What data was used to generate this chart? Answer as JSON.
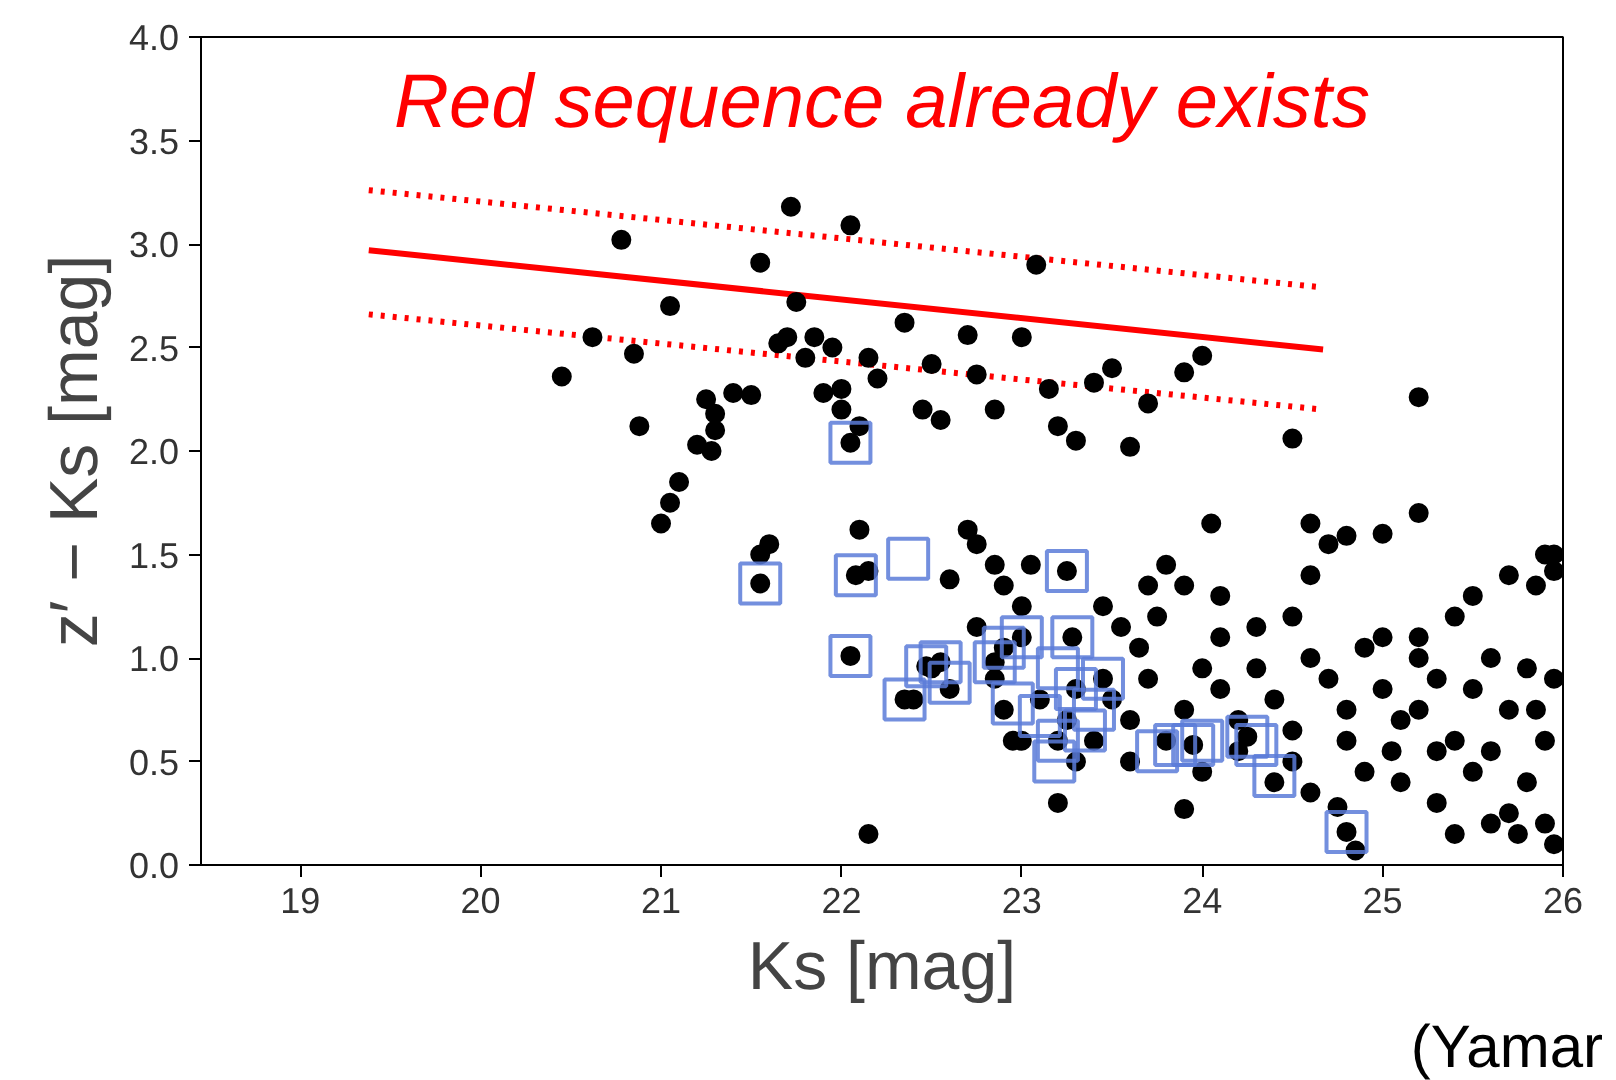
{
  "chart_data": {
    "type": "scatter",
    "title": "Red sequence already exists",
    "xlabel": "Ks [mag]",
    "ylabel": "z′ − Ks [mag]",
    "annotations": [
      "(Yamar"
    ],
    "xlim": [
      18.45,
      26
    ],
    "ylim": [
      0,
      4
    ],
    "xticks": [
      19,
      20,
      21,
      22,
      23,
      24,
      25,
      26
    ],
    "yticks": [
      {
        "value": 0,
        "label": "0.0"
      },
      {
        "value": 0.5,
        "label": "0.5"
      },
      {
        "value": 1,
        "label": "1.0"
      },
      {
        "value": 1.5,
        "label": "1.5"
      },
      {
        "value": 2,
        "label": "2.0"
      },
      {
        "value": 2.5,
        "label": "2.5"
      },
      {
        "value": 3,
        "label": "3.0"
      },
      {
        "value": 3.5,
        "label": "3.5"
      },
      {
        "value": 4,
        "label": "4.0"
      }
    ],
    "grid": false,
    "series": [
      {
        "marker": "circle",
        "color": "#000000",
        "x": [
          20.45,
          20.62,
          20.78,
          20.85,
          20.88,
          21.05,
          21.0,
          21.05,
          21.1,
          21.2,
          21.25,
          21.3,
          21.3,
          21.28,
          21.4,
          21.5,
          21.55,
          21.6,
          21.65,
          21.7,
          21.72,
          21.75,
          21.8,
          21.85,
          21.9,
          21.95,
          22.0,
          22.05,
          22.15,
          22.2,
          22.0,
          22.1,
          22.35,
          22.45,
          22.5,
          22.55,
          22.7,
          22.75,
          22.85,
          23.0,
          23.08,
          23.15,
          23.2,
          23.3,
          23.4,
          23.5,
          23.7,
          23.9,
          24.0,
          23.6,
          24.5,
          25.2,
          25.2,
          24.05,
          24.6,
          24.8,
          25.0,
          25.9,
          25.95,
          21.55,
          22.1,
          22.15,
          22.6,
          22.7,
          22.75,
          22.85,
          22.9,
          22.75,
          23.0,
          23.05,
          23.45,
          23.55,
          23.65,
          23.7,
          23.8,
          23.9,
          24.1,
          24.3,
          24.5,
          24.6,
          24.7,
          25.0,
          25.2,
          25.4,
          25.5,
          25.7,
          25.85,
          25.95,
          23.5,
          23.6,
          23.7,
          23.8,
          23.9,
          24.0,
          24.1,
          24.2,
          24.3,
          24.4,
          24.5,
          24.6,
          24.7,
          24.8,
          24.9,
          25.0,
          25.1,
          25.2,
          25.3,
          25.4,
          25.5,
          25.6,
          25.7,
          25.8,
          25.9,
          25.95,
          24.4,
          24.6,
          24.75,
          24.9,
          25.1,
          25.3,
          25.5,
          25.7,
          25.8,
          25.9,
          25.95,
          24.85,
          24.2,
          24.0,
          23.9,
          23.6,
          23.3,
          22.85,
          22.9,
          23.1,
          23.0,
          23.2,
          22.15,
          23.4,
          25.6,
          25.3,
          25.05,
          24.8,
          24.1,
          23.75,
          25.4,
          25.6,
          25.75,
          22.6,
          22.4,
          22.5,
          22.95,
          23.25,
          24.5,
          25.2,
          25.85,
          21.55,
          22.05,
          22.08,
          22.05,
          22.35,
          22.47,
          22.55,
          22.85,
          22.9,
          23.0,
          23.2,
          23.25,
          23.28,
          23.3,
          23.45,
          23.95,
          24.25,
          24.8
        ],
        "values": [
          2.36,
          2.55,
          3.02,
          2.47,
          2.12,
          2.7,
          1.65,
          1.75,
          1.85,
          2.03,
          2.25,
          2.18,
          2.1,
          2.0,
          2.28,
          2.27,
          2.91,
          1.55,
          2.52,
          2.55,
          3.18,
          2.72,
          2.45,
          2.55,
          2.28,
          2.5,
          2.3,
          3.09,
          2.45,
          2.35,
          2.2,
          2.12,
          2.62,
          2.2,
          2.42,
          2.15,
          2.56,
          2.37,
          2.2,
          2.55,
          2.9,
          2.3,
          2.12,
          2.05,
          2.33,
          2.4,
          2.23,
          2.38,
          2.46,
          2.02,
          2.06,
          2.26,
          1.7,
          1.65,
          1.65,
          1.59,
          1.6,
          1.5,
          1.42,
          1.5,
          1.62,
          1.42,
          1.38,
          1.62,
          1.55,
          1.45,
          1.35,
          1.15,
          1.25,
          1.45,
          1.25,
          1.15,
          1.05,
          1.35,
          1.45,
          1.35,
          1.3,
          1.15,
          1.2,
          1.4,
          1.55,
          1.1,
          1.0,
          1.2,
          1.3,
          1.4,
          1.35,
          1.5,
          0.8,
          0.7,
          0.9,
          0.6,
          0.75,
          0.95,
          0.85,
          0.7,
          0.95,
          0.8,
          0.65,
          1.0,
          0.9,
          0.75,
          1.05,
          0.85,
          0.7,
          1.1,
          0.9,
          0.6,
          0.85,
          1.0,
          0.75,
          0.95,
          0.6,
          0.9,
          0.4,
          0.35,
          0.28,
          0.45,
          0.4,
          0.3,
          0.45,
          0.25,
          0.4,
          0.2,
          0.1,
          0.07,
          0.55,
          0.45,
          0.27,
          0.5,
          0.5,
          0.9,
          0.75,
          0.8,
          0.6,
          0.3,
          0.15,
          0.6,
          0.55,
          0.55,
          0.55,
          0.6,
          1.1,
          1.2,
          0.15,
          0.2,
          0.15,
          0.85,
          0.8,
          0.95,
          0.6,
          0.7,
          0.5,
          0.75,
          0.75,
          1.36,
          2.04,
          1.4,
          1.01,
          0.8,
          0.96,
          0.98,
          0.98,
          1.05,
          1.1,
          0.6,
          1.42,
          1.1,
          0.85,
          0.9,
          0.58,
          0.62,
          0.16
        ]
      },
      {
        "marker": "square",
        "color": "#5a7bd8",
        "x": [
          21.55,
          22.05,
          22.08,
          22.37,
          22.05,
          22.35,
          22.47,
          22.55,
          22.6,
          22.85,
          22.9,
          23.0,
          22.95,
          23.1,
          23.2,
          23.18,
          23.25,
          23.28,
          23.3,
          23.35,
          23.45,
          23.2,
          23.4,
          23.75,
          23.95,
          24.0,
          24.25,
          24.3,
          24.4,
          24.8,
          23.85
        ],
        "values": [
          1.36,
          2.04,
          1.4,
          1.48,
          1.01,
          0.8,
          0.96,
          0.98,
          0.88,
          0.98,
          1.05,
          1.1,
          0.78,
          0.72,
          0.6,
          0.5,
          1.42,
          1.1,
          0.85,
          0.65,
          0.9,
          0.95,
          0.75,
          0.55,
          0.58,
          0.6,
          0.62,
          0.58,
          0.43,
          0.16,
          0.58
        ]
      },
      {
        "type": "line",
        "line_style": "solid",
        "color": "#ff0000",
        "x": [
          19.38,
          24.67
        ],
        "values": [
          2.97,
          2.49
        ]
      },
      {
        "type": "line",
        "line_style": "dotted",
        "color": "#ff0000",
        "x": [
          19.38,
          24.67
        ],
        "values": [
          3.26,
          2.79
        ]
      },
      {
        "type": "line",
        "line_style": "dotted",
        "color": "#ff0000",
        "x": [
          19.38,
          24.67
        ],
        "values": [
          2.66,
          2.2
        ]
      }
    ]
  }
}
